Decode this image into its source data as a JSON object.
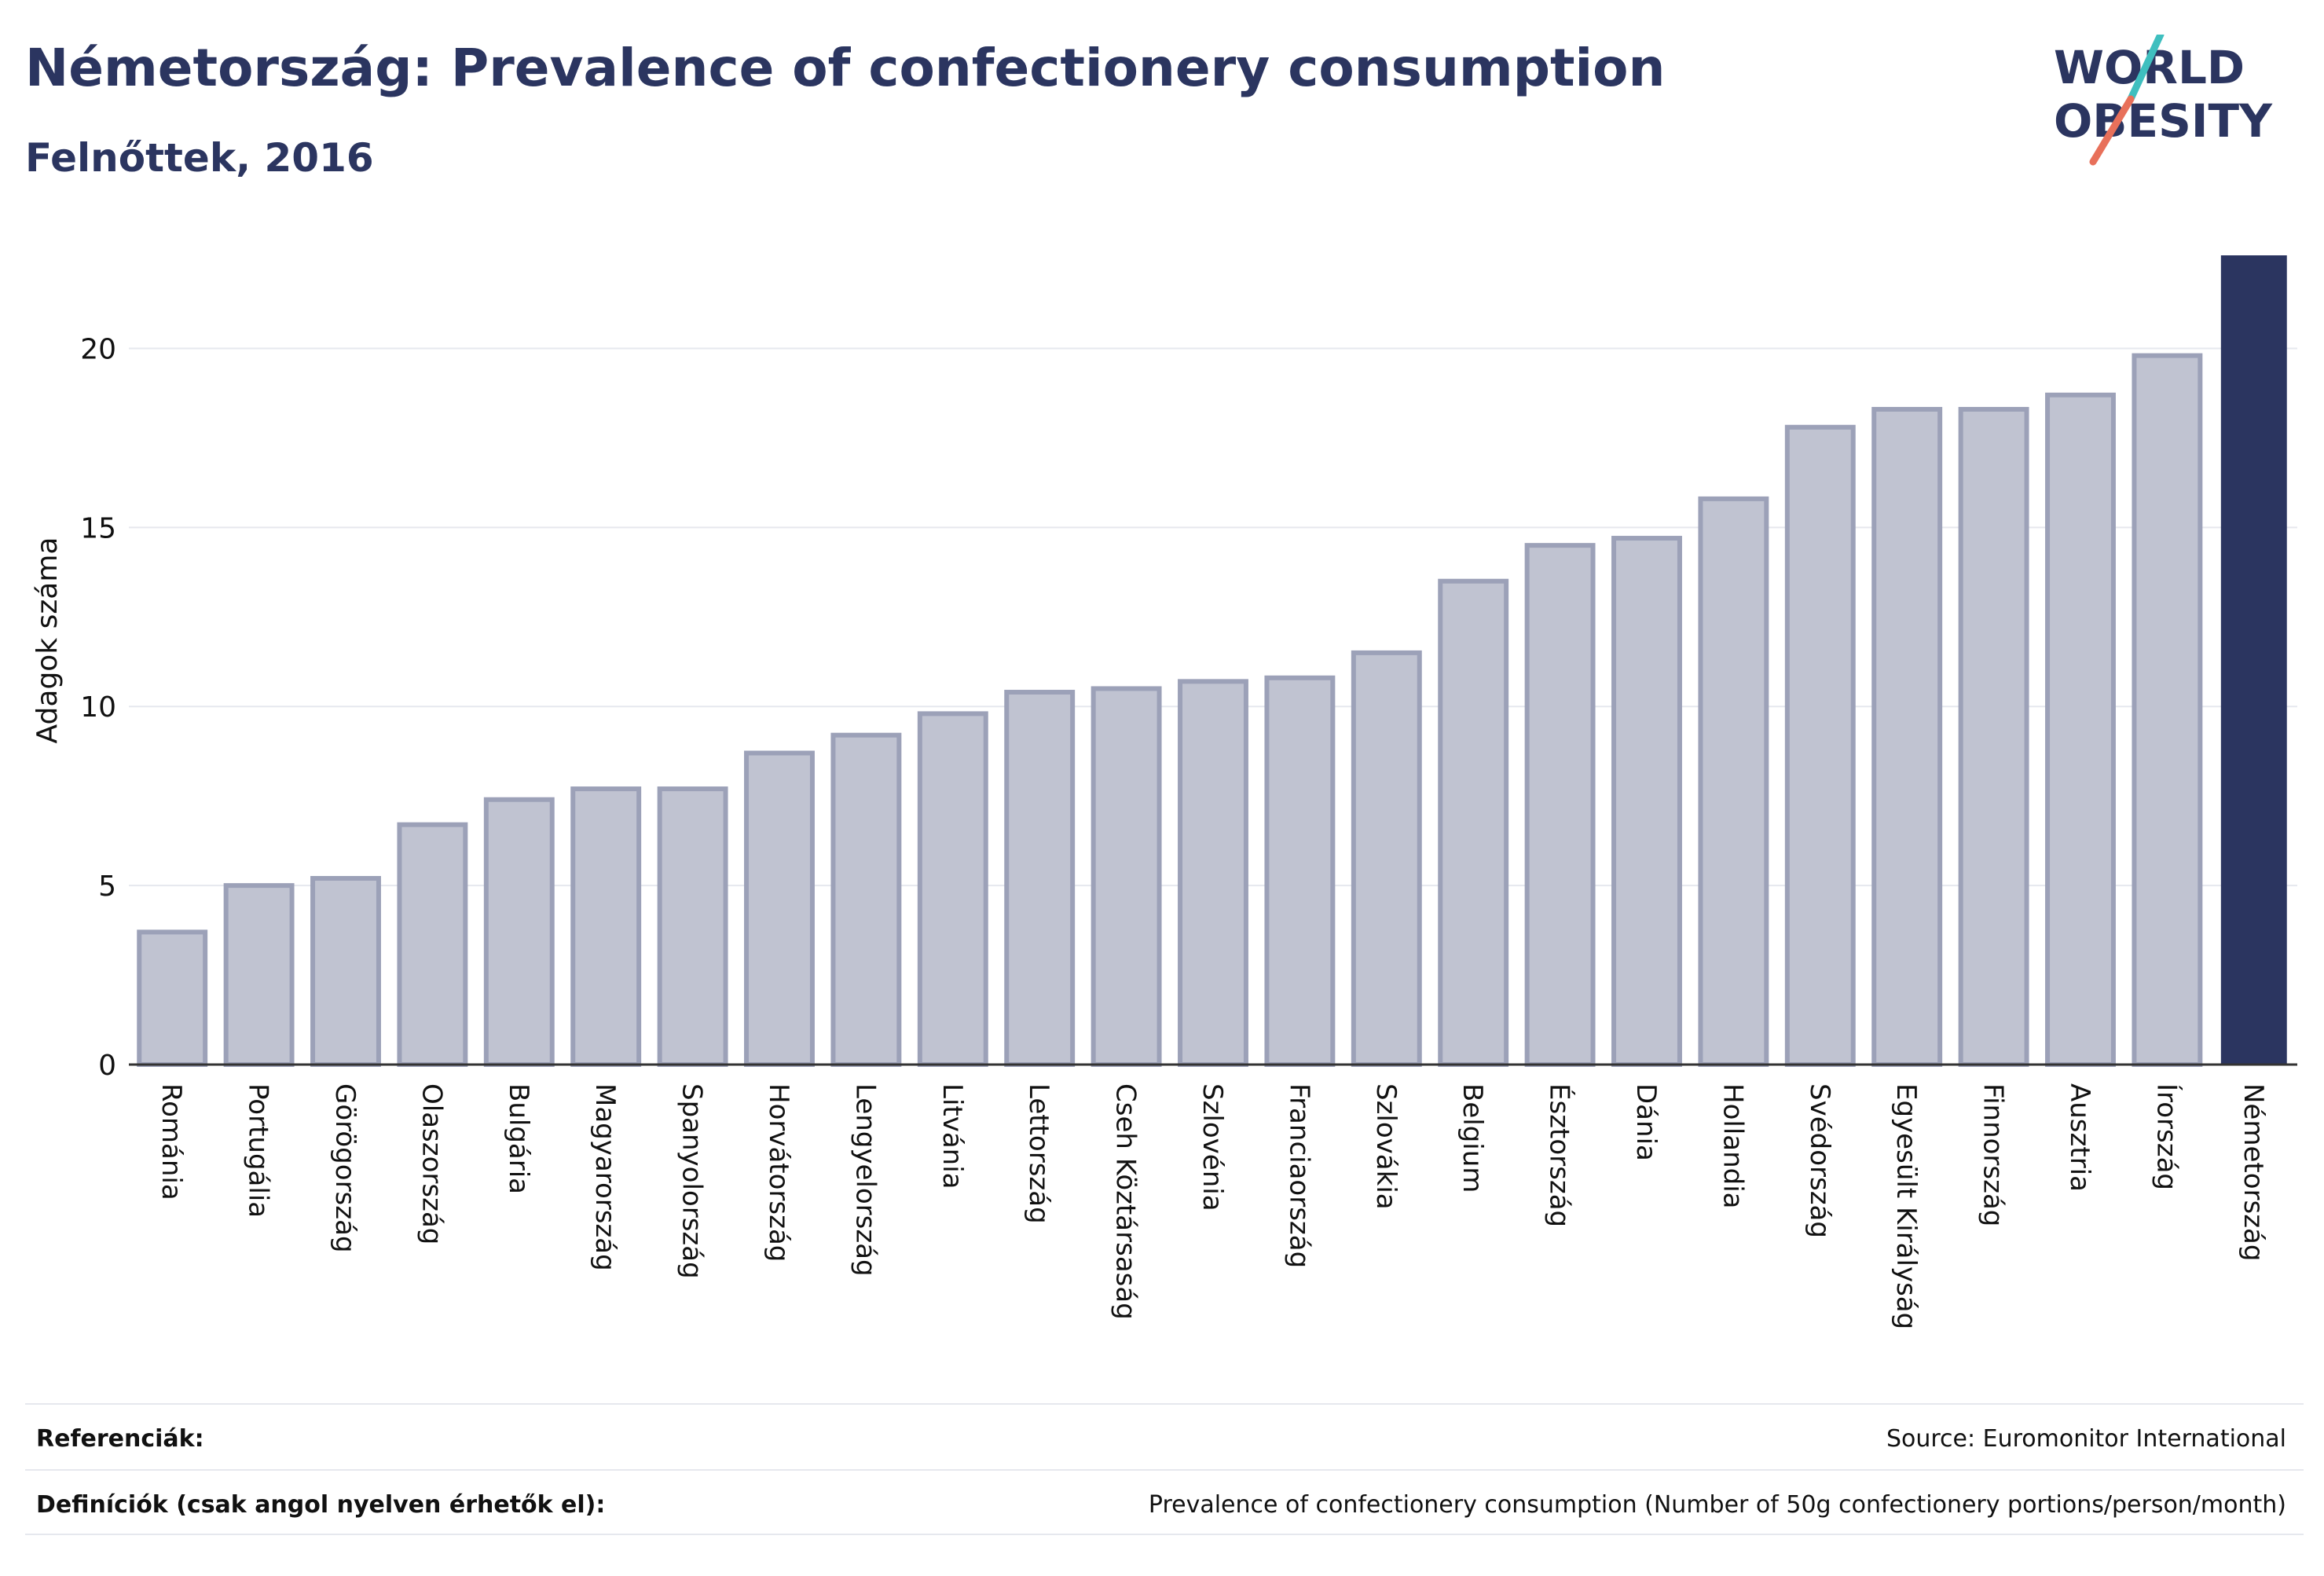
{
  "header": {
    "title": "Németország: Prevalence of confectionery consumption",
    "subtitle": "Felnőttek, 2016"
  },
  "logo": {
    "line1": "WORLD",
    "line2": "OBESITY",
    "accent_colors": [
      "#3fbfbf",
      "#e8705a"
    ]
  },
  "footer": {
    "references_label": "Referenciák:",
    "references_value": "Source: Euromonitor International",
    "definitions_label": "Definíciók (csak angol nyelven érhetők el):",
    "definitions_value": "Prevalence of confectionery consumption (Number of 50g confectionery portions/person/month)"
  },
  "chart_data": {
    "type": "bar",
    "ylabel": "Adagok száma",
    "xlabel": "",
    "ylim": [
      0,
      22.6
    ],
    "yticks": [
      0,
      5,
      10,
      15,
      20
    ],
    "grid": true,
    "categories": [
      "Románia",
      "Portugália",
      "Görögország",
      "Olaszország",
      "Bulgária",
      "Magyarország",
      "Spanyolország",
      "Horvátország",
      "Lengyelország",
      "Litvánia",
      "Lettország",
      "Cseh Köztársaság",
      "Szlovénia",
      "Franciaország",
      "Szlovákia",
      "Belgium",
      "Észtország",
      "Dánia",
      "Hollandia",
      "Svédország",
      "Egyesült Királyság",
      "Finnország",
      "Ausztria",
      "Írország",
      "Németország"
    ],
    "values": [
      3.7,
      5.0,
      5.2,
      6.7,
      7.4,
      7.7,
      7.7,
      8.7,
      9.2,
      9.8,
      10.4,
      10.5,
      10.7,
      10.8,
      11.5,
      13.5,
      14.5,
      14.7,
      15.8,
      17.8,
      18.3,
      18.3,
      18.7,
      19.8,
      22.6
    ],
    "highlight": "Németország",
    "colors": {
      "bar": "#c0c3d1",
      "bar_border": "#9ca1b8",
      "highlight": "#2b3560",
      "grid": "#e6e8ee",
      "axis": "#333333"
    }
  }
}
